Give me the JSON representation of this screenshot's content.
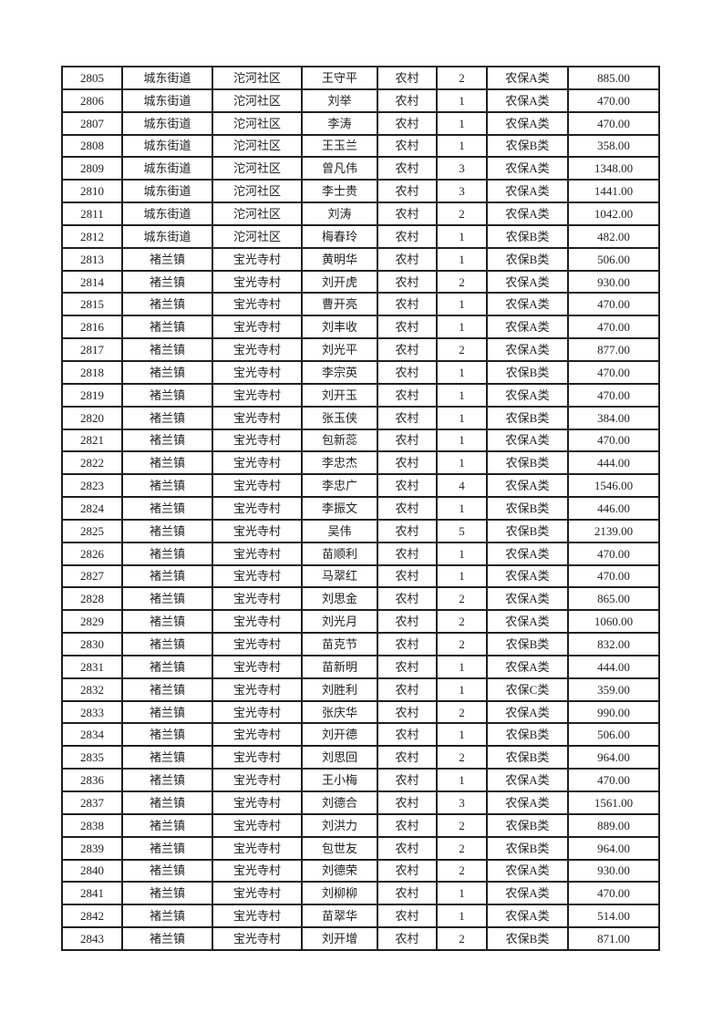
{
  "page": {
    "background_color": "#ffffff",
    "border_color": "#1f1f1f",
    "text_color": "#1f1f1f"
  },
  "table": {
    "rows": [
      [
        "2805",
        "城东街道",
        "沱河社区",
        "王守平",
        "农村",
        "2",
        "农保A类",
        "885.00"
      ],
      [
        "2806",
        "城东街道",
        "沱河社区",
        "刘举",
        "农村",
        "1",
        "农保A类",
        "470.00"
      ],
      [
        "2807",
        "城东街道",
        "沱河社区",
        "李涛",
        "农村",
        "1",
        "农保A类",
        "470.00"
      ],
      [
        "2808",
        "城东街道",
        "沱河社区",
        "王玉兰",
        "农村",
        "1",
        "农保B类",
        "358.00"
      ],
      [
        "2809",
        "城东街道",
        "沱河社区",
        "曾凡伟",
        "农村",
        "3",
        "农保A类",
        "1348.00"
      ],
      [
        "2810",
        "城东街道",
        "沱河社区",
        "李士贵",
        "农村",
        "3",
        "农保A类",
        "1441.00"
      ],
      [
        "2811",
        "城东街道",
        "沱河社区",
        "刘涛",
        "农村",
        "2",
        "农保A类",
        "1042.00"
      ],
      [
        "2812",
        "城东街道",
        "沱河社区",
        "梅春玲",
        "农村",
        "1",
        "农保B类",
        "482.00"
      ],
      [
        "2813",
        "褚兰镇",
        "宝光寺村",
        "黄明华",
        "农村",
        "1",
        "农保B类",
        "506.00"
      ],
      [
        "2814",
        "褚兰镇",
        "宝光寺村",
        "刘开虎",
        "农村",
        "2",
        "农保A类",
        "930.00"
      ],
      [
        "2815",
        "褚兰镇",
        "宝光寺村",
        "曹开亮",
        "农村",
        "1",
        "农保A类",
        "470.00"
      ],
      [
        "2816",
        "褚兰镇",
        "宝光寺村",
        "刘丰收",
        "农村",
        "1",
        "农保A类",
        "470.00"
      ],
      [
        "2817",
        "褚兰镇",
        "宝光寺村",
        "刘光平",
        "农村",
        "2",
        "农保A类",
        "877.00"
      ],
      [
        "2818",
        "褚兰镇",
        "宝光寺村",
        "李宗英",
        "农村",
        "1",
        "农保B类",
        "470.00"
      ],
      [
        "2819",
        "褚兰镇",
        "宝光寺村",
        "刘开玉",
        "农村",
        "1",
        "农保A类",
        "470.00"
      ],
      [
        "2820",
        "褚兰镇",
        "宝光寺村",
        "张玉侠",
        "农村",
        "1",
        "农保B类",
        "384.00"
      ],
      [
        "2821",
        "褚兰镇",
        "宝光寺村",
        "包新蕊",
        "农村",
        "1",
        "农保A类",
        "470.00"
      ],
      [
        "2822",
        "褚兰镇",
        "宝光寺村",
        "李忠杰",
        "农村",
        "1",
        "农保B类",
        "444.00"
      ],
      [
        "2823",
        "褚兰镇",
        "宝光寺村",
        "李忠广",
        "农村",
        "4",
        "农保A类",
        "1546.00"
      ],
      [
        "2824",
        "褚兰镇",
        "宝光寺村",
        "李振文",
        "农村",
        "1",
        "农保B类",
        "446.00"
      ],
      [
        "2825",
        "褚兰镇",
        "宝光寺村",
        "吴伟",
        "农村",
        "5",
        "农保B类",
        "2139.00"
      ],
      [
        "2826",
        "褚兰镇",
        "宝光寺村",
        "苗顺利",
        "农村",
        "1",
        "农保A类",
        "470.00"
      ],
      [
        "2827",
        "褚兰镇",
        "宝光寺村",
        "马翠红",
        "农村",
        "1",
        "农保A类",
        "470.00"
      ],
      [
        "2828",
        "褚兰镇",
        "宝光寺村",
        "刘思金",
        "农村",
        "2",
        "农保A类",
        "865.00"
      ],
      [
        "2829",
        "褚兰镇",
        "宝光寺村",
        "刘光月",
        "农村",
        "2",
        "农保A类",
        "1060.00"
      ],
      [
        "2830",
        "褚兰镇",
        "宝光寺村",
        "苗克节",
        "农村",
        "2",
        "农保B类",
        "832.00"
      ],
      [
        "2831",
        "褚兰镇",
        "宝光寺村",
        "苗新明",
        "农村",
        "1",
        "农保A类",
        "444.00"
      ],
      [
        "2832",
        "褚兰镇",
        "宝光寺村",
        "刘胜利",
        "农村",
        "1",
        "农保C类",
        "359.00"
      ],
      [
        "2833",
        "褚兰镇",
        "宝光寺村",
        "张庆华",
        "农村",
        "2",
        "农保A类",
        "990.00"
      ],
      [
        "2834",
        "褚兰镇",
        "宝光寺村",
        "刘开德",
        "农村",
        "1",
        "农保B类",
        "506.00"
      ],
      [
        "2835",
        "褚兰镇",
        "宝光寺村",
        "刘思回",
        "农村",
        "2",
        "农保B类",
        "964.00"
      ],
      [
        "2836",
        "褚兰镇",
        "宝光寺村",
        "王小梅",
        "农村",
        "1",
        "农保A类",
        "470.00"
      ],
      [
        "2837",
        "褚兰镇",
        "宝光寺村",
        "刘德合",
        "农村",
        "3",
        "农保A类",
        "1561.00"
      ],
      [
        "2838",
        "褚兰镇",
        "宝光寺村",
        "刘洪力",
        "农村",
        "2",
        "农保B类",
        "889.00"
      ],
      [
        "2839",
        "褚兰镇",
        "宝光寺村",
        "包世友",
        "农村",
        "2",
        "农保B类",
        "964.00"
      ],
      [
        "2840",
        "褚兰镇",
        "宝光寺村",
        "刘德荣",
        "农村",
        "2",
        "农保A类",
        "930.00"
      ],
      [
        "2841",
        "褚兰镇",
        "宝光寺村",
        "刘柳柳",
        "农村",
        "1",
        "农保A类",
        "470.00"
      ],
      [
        "2842",
        "褚兰镇",
        "宝光寺村",
        "苗翠华",
        "农村",
        "1",
        "农保A类",
        "514.00"
      ],
      [
        "2843",
        "褚兰镇",
        "宝光寺村",
        "刘开增",
        "农村",
        "2",
        "农保B类",
        "871.00"
      ]
    ]
  }
}
